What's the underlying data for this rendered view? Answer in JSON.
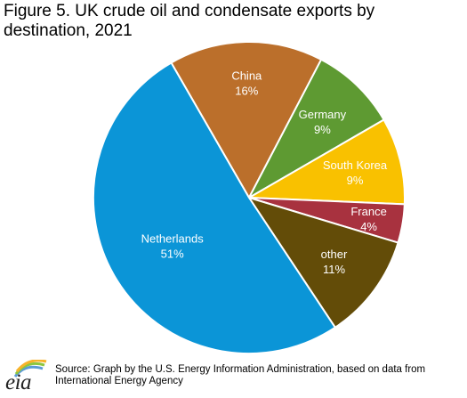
{
  "title": "Figure 5.  UK crude oil and condensate exports by destination, 2021",
  "source": "Source:  Graph by the U.S. Energy Information Administration, based on data from International Energy Agency",
  "logo": {
    "text": "eia",
    "colors": [
      "#5b9bd5",
      "#8cc63f",
      "#f7b32b"
    ]
  },
  "chart_data": {
    "type": "pie",
    "title": "Figure 5.  UK crude oil and condensate exports by destination, 2021",
    "unit": "%",
    "start_angle_deg": 330,
    "direction": "clockwise",
    "slices": [
      {
        "label": "China",
        "display_value": "16%",
        "value": 16,
        "color": "#bb6f2b"
      },
      {
        "label": "Germany",
        "display_value": "9%",
        "value": 9,
        "color": "#5e9a32"
      },
      {
        "label": "South Korea",
        "display_value": "9%",
        "value": 9,
        "color": "#f9c100"
      },
      {
        "label": "France",
        "display_value": "4%",
        "value": 4,
        "color": "#a8323f"
      },
      {
        "label": "other",
        "display_value": "11%",
        "value": 11,
        "color": "#634c08"
      },
      {
        "label": "Netherlands",
        "display_value": "51%",
        "value": 51,
        "color": "#0b95d7"
      }
    ]
  }
}
